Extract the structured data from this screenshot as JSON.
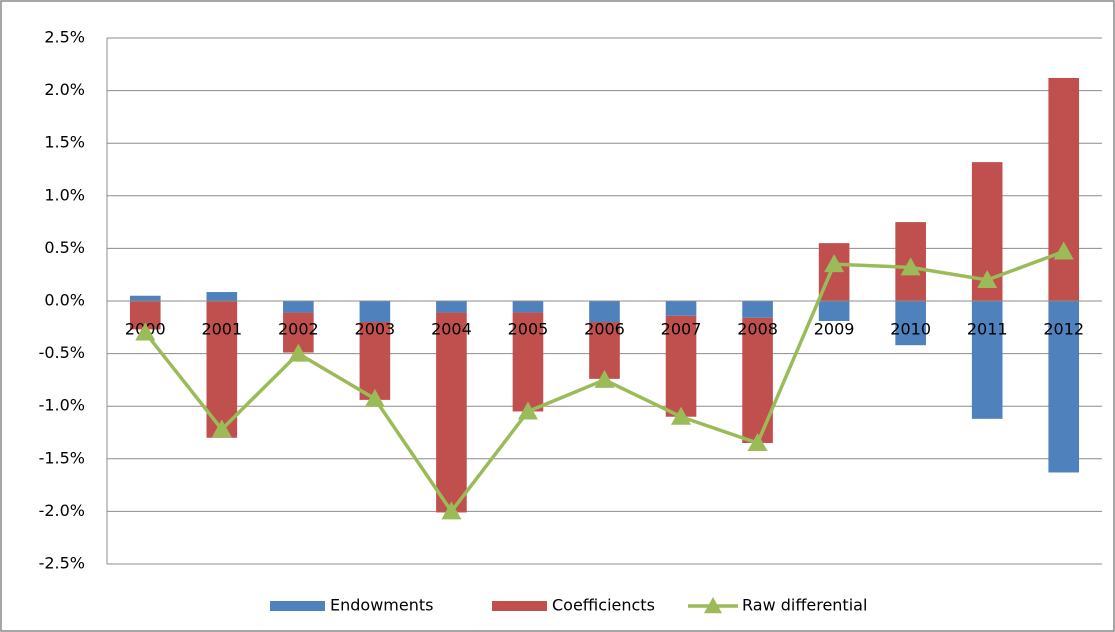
{
  "chart_data": {
    "type": "stacked-bar-line",
    "categories": [
      "2000",
      "2001",
      "2002",
      "2003",
      "2004",
      "2005",
      "2006",
      "2007",
      "2008",
      "2009",
      "2010",
      "2011",
      "2012"
    ],
    "series": [
      {
        "name": "Endowments",
        "type": "bar",
        "color": "#4f81bd",
        "values": [
          0.05,
          0.085,
          -0.11,
          -0.2,
          -0.11,
          -0.11,
          -0.2,
          -0.14,
          -0.16,
          -0.19,
          -0.42,
          -1.12,
          -1.63
        ]
      },
      {
        "name": "Coefficiencts",
        "type": "bar",
        "color": "#c0504d",
        "values": [
          -0.27,
          -1.3,
          -0.38,
          -0.74,
          -1.9,
          -0.94,
          -0.54,
          -0.96,
          -1.19,
          0.55,
          0.75,
          1.32,
          2.12
        ]
      },
      {
        "name": "Raw differential",
        "type": "line",
        "color": "#9bbb59",
        "values": [
          -0.3,
          -1.22,
          -0.5,
          -0.93,
          -2.0,
          -1.05,
          -0.75,
          -1.1,
          -1.35,
          0.35,
          0.32,
          0.2,
          0.47
        ]
      }
    ],
    "ylim": [
      -2.5,
      2.5
    ],
    "yticks": [
      {
        "value": -2.5,
        "label": "-2.5%"
      },
      {
        "value": -2.0,
        "label": "-2.0%"
      },
      {
        "value": -1.5,
        "label": "-1.5%"
      },
      {
        "value": -1.0,
        "label": "-1.0%"
      },
      {
        "value": -0.5,
        "label": "-0.5%"
      },
      {
        "value": 0,
        "label": "0.0%"
      },
      {
        "value": 0.5,
        "label": "0.5%"
      },
      {
        "value": 1.0,
        "label": "1.0%"
      },
      {
        "value": 1.5,
        "label": "1.5%"
      },
      {
        "value": 2.0,
        "label": "2.0%"
      },
      {
        "value": 2.5,
        "label": "2.5%"
      }
    ],
    "grid": true,
    "legend": "bottom"
  }
}
